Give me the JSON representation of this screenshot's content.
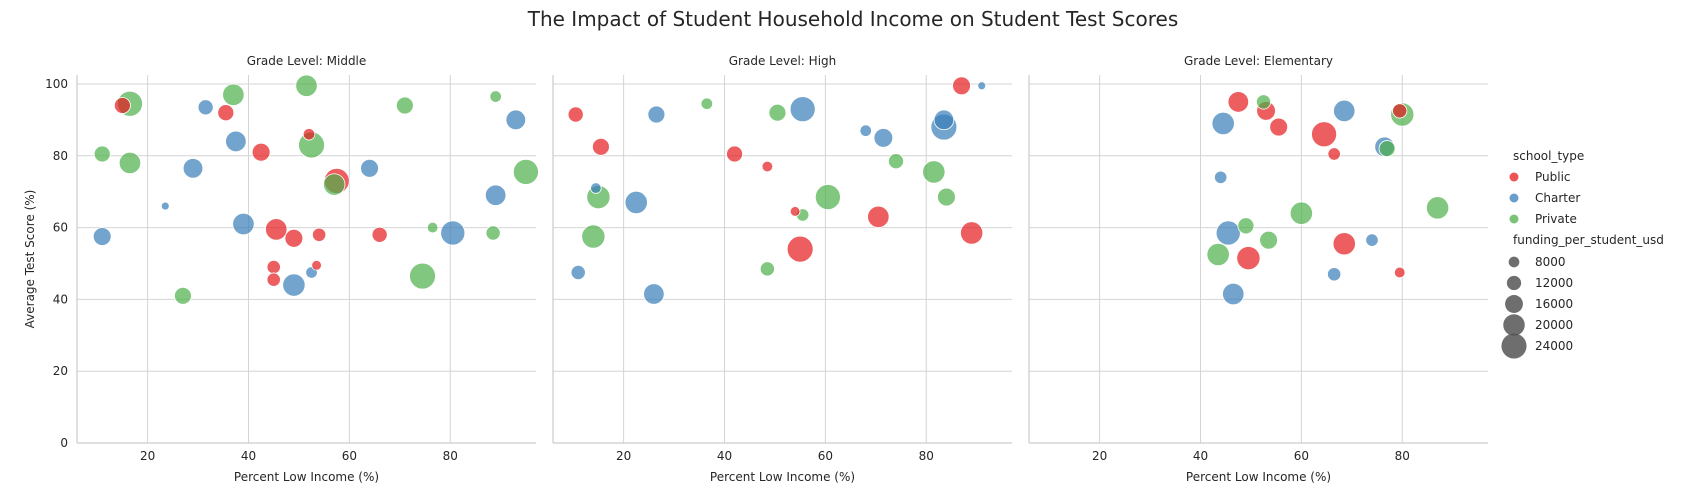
{
  "chart_data": {
    "type": "scatter",
    "title": "The Impact of Student Household Income on Student Test Scores",
    "xlabel": "Percent Low Income (%)",
    "ylabel": "Average Test Score (%)",
    "xlim": [
      6,
      97
    ],
    "ylim": [
      0,
      102.5
    ],
    "xticks": [
      20,
      40,
      60,
      80
    ],
    "yticks": [
      0,
      20,
      40,
      60,
      80,
      100
    ],
    "grid": true,
    "colors": {
      "Public": "#e41a1c",
      "Charter": "#377eb8",
      "Private": "#4daf4a"
    },
    "legend": {
      "placement": "right",
      "hue_title": "school_type",
      "hue_entries": [
        "Public",
        "Charter",
        "Private"
      ],
      "size_title": "funding_per_student_usd",
      "size_entries": [
        8000,
        12000,
        16000,
        20000,
        24000
      ],
      "size_range": [
        5000,
        25000
      ]
    },
    "panels": [
      {
        "title": "Grade Level: Middle",
        "points": [
          {
            "x": 15,
            "y": 94,
            "type": "Public",
            "funding": 14000
          },
          {
            "x": 35.5,
            "y": 92,
            "type": "Public",
            "funding": 14000
          },
          {
            "x": 42.5,
            "y": 81,
            "type": "Public",
            "funding": 16000
          },
          {
            "x": 52,
            "y": 86,
            "type": "Public",
            "funding": 9000
          },
          {
            "x": 57.5,
            "y": 73,
            "type": "Public",
            "funding": 24000
          },
          {
            "x": 45.5,
            "y": 59.5,
            "type": "Public",
            "funding": 20000
          },
          {
            "x": 49,
            "y": 57,
            "type": "Public",
            "funding": 16000
          },
          {
            "x": 54,
            "y": 58,
            "type": "Public",
            "funding": 11000
          },
          {
            "x": 66,
            "y": 58,
            "type": "Public",
            "funding": 13000
          },
          {
            "x": 45,
            "y": 49,
            "type": "Public",
            "funding": 11000
          },
          {
            "x": 45,
            "y": 45.5,
            "type": "Public",
            "funding": 11000
          },
          {
            "x": 53.5,
            "y": 49.5,
            "type": "Public",
            "funding": 7000
          },
          {
            "x": 31.5,
            "y": 93.5,
            "type": "Charter",
            "funding": 13000
          },
          {
            "x": 37.5,
            "y": 84,
            "type": "Charter",
            "funding": 19000
          },
          {
            "x": 29,
            "y": 76.5,
            "type": "Charter",
            "funding": 18000
          },
          {
            "x": 64,
            "y": 76.5,
            "type": "Charter",
            "funding": 16000
          },
          {
            "x": 23.5,
            "y": 66,
            "type": "Charter",
            "funding": 5000
          },
          {
            "x": 39,
            "y": 61,
            "type": "Charter",
            "funding": 20000
          },
          {
            "x": 80.5,
            "y": 58.5,
            "type": "Charter",
            "funding": 23000
          },
          {
            "x": 11,
            "y": 57.5,
            "type": "Charter",
            "funding": 16000
          },
          {
            "x": 89,
            "y": 69,
            "type": "Charter",
            "funding": 19000
          },
          {
            "x": 93,
            "y": 90,
            "type": "Charter",
            "funding": 18000
          },
          {
            "x": 52.5,
            "y": 47.5,
            "type": "Charter",
            "funding": 9000
          },
          {
            "x": 49,
            "y": 44,
            "type": "Charter",
            "funding": 21000
          },
          {
            "x": 16.5,
            "y": 94.5,
            "type": "Private",
            "funding": 24000
          },
          {
            "x": 37,
            "y": 97,
            "type": "Private",
            "funding": 20000
          },
          {
            "x": 51.5,
            "y": 99.5,
            "type": "Private",
            "funding": 20000
          },
          {
            "x": 52.5,
            "y": 83,
            "type": "Private",
            "funding": 25000
          },
          {
            "x": 71,
            "y": 94,
            "type": "Private",
            "funding": 15000
          },
          {
            "x": 89,
            "y": 96.5,
            "type": "Private",
            "funding": 9000
          },
          {
            "x": 11,
            "y": 80.5,
            "type": "Private",
            "funding": 14000
          },
          {
            "x": 16.5,
            "y": 78,
            "type": "Private",
            "funding": 20000
          },
          {
            "x": 57,
            "y": 72,
            "type": "Private",
            "funding": 20000
          },
          {
            "x": 95,
            "y": 75.5,
            "type": "Private",
            "funding": 24000
          },
          {
            "x": 76.5,
            "y": 60,
            "type": "Private",
            "funding": 8000
          },
          {
            "x": 88.5,
            "y": 58.5,
            "type": "Private",
            "funding": 12000
          },
          {
            "x": 74.5,
            "y": 46.5,
            "type": "Private",
            "funding": 25000
          },
          {
            "x": 27,
            "y": 41,
            "type": "Private",
            "funding": 15000
          }
        ]
      },
      {
        "title": "Grade Level: High",
        "points": [
          {
            "x": 10.5,
            "y": 91.5,
            "type": "Public",
            "funding": 13000
          },
          {
            "x": 15.5,
            "y": 82.5,
            "type": "Public",
            "funding": 15000
          },
          {
            "x": 42,
            "y": 80.5,
            "type": "Public",
            "funding": 14000
          },
          {
            "x": 48.5,
            "y": 77,
            "type": "Public",
            "funding": 8000
          },
          {
            "x": 54,
            "y": 64.5,
            "type": "Public",
            "funding": 7000
          },
          {
            "x": 70.5,
            "y": 63,
            "type": "Public",
            "funding": 20000
          },
          {
            "x": 87,
            "y": 99.5,
            "type": "Public",
            "funding": 16000
          },
          {
            "x": 89,
            "y": 58.5,
            "type": "Public",
            "funding": 21000
          },
          {
            "x": 55,
            "y": 54,
            "type": "Public",
            "funding": 25000
          },
          {
            "x": 26.5,
            "y": 91.5,
            "type": "Charter",
            "funding": 15000
          },
          {
            "x": 55.5,
            "y": 93,
            "type": "Charter",
            "funding": 24000
          },
          {
            "x": 68,
            "y": 87,
            "type": "Charter",
            "funding": 9000
          },
          {
            "x": 71.5,
            "y": 85,
            "type": "Charter",
            "funding": 17000
          },
          {
            "x": 83.5,
            "y": 90,
            "type": "Charter",
            "funding": 18000
          },
          {
            "x": 83.5,
            "y": 88,
            "type": "Charter",
            "funding": 25000
          },
          {
            "x": 91,
            "y": 99.5,
            "type": "Charter",
            "funding": 5000
          },
          {
            "x": 14.5,
            "y": 71,
            "type": "Charter",
            "funding": 8000
          },
          {
            "x": 22.5,
            "y": 67,
            "type": "Charter",
            "funding": 21000
          },
          {
            "x": 11,
            "y": 47.5,
            "type": "Charter",
            "funding": 12000
          },
          {
            "x": 26,
            "y": 41.5,
            "type": "Charter",
            "funding": 19000
          },
          {
            "x": 36.5,
            "y": 94.5,
            "type": "Private",
            "funding": 9000
          },
          {
            "x": 50.5,
            "y": 92,
            "type": "Private",
            "funding": 15000
          },
          {
            "x": 74,
            "y": 78.5,
            "type": "Private",
            "funding": 13000
          },
          {
            "x": 81.5,
            "y": 75.5,
            "type": "Private",
            "funding": 21000
          },
          {
            "x": 15,
            "y": 68.5,
            "type": "Private",
            "funding": 22000
          },
          {
            "x": 60.5,
            "y": 68.5,
            "type": "Private",
            "funding": 24000
          },
          {
            "x": 84,
            "y": 68.5,
            "type": "Private",
            "funding": 16000
          },
          {
            "x": 55.5,
            "y": 63.5,
            "type": "Private",
            "funding": 10000
          },
          {
            "x": 14,
            "y": 57.5,
            "type": "Private",
            "funding": 22000
          },
          {
            "x": 48.5,
            "y": 48.5,
            "type": "Private",
            "funding": 12000
          }
        ]
      },
      {
        "title": "Grade Level: Elementary",
        "points": [
          {
            "x": 47.5,
            "y": 95,
            "type": "Public",
            "funding": 19000
          },
          {
            "x": 53,
            "y": 92.5,
            "type": "Public",
            "funding": 17000
          },
          {
            "x": 55.5,
            "y": 88,
            "type": "Public",
            "funding": 16000
          },
          {
            "x": 64.5,
            "y": 86,
            "type": "Public",
            "funding": 24000
          },
          {
            "x": 66.5,
            "y": 80.5,
            "type": "Public",
            "funding": 10000
          },
          {
            "x": 79.5,
            "y": 92.5,
            "type": "Public",
            "funding": 12000
          },
          {
            "x": 68.5,
            "y": 55.5,
            "type": "Public",
            "funding": 21000
          },
          {
            "x": 49.5,
            "y": 51.5,
            "type": "Public",
            "funding": 22000
          },
          {
            "x": 79.5,
            "y": 47.5,
            "type": "Public",
            "funding": 8000
          },
          {
            "x": 44.5,
            "y": 89,
            "type": "Charter",
            "funding": 21000
          },
          {
            "x": 68.5,
            "y": 92.5,
            "type": "Charter",
            "funding": 20000
          },
          {
            "x": 76.5,
            "y": 82.5,
            "type": "Charter",
            "funding": 18000
          },
          {
            "x": 44,
            "y": 74,
            "type": "Charter",
            "funding": 10000
          },
          {
            "x": 45.5,
            "y": 58.5,
            "type": "Charter",
            "funding": 23000
          },
          {
            "x": 74,
            "y": 56.5,
            "type": "Charter",
            "funding": 10000
          },
          {
            "x": 66.5,
            "y": 47,
            "type": "Charter",
            "funding": 11000
          },
          {
            "x": 46.5,
            "y": 41.5,
            "type": "Charter",
            "funding": 20000
          },
          {
            "x": 52.5,
            "y": 95,
            "type": "Private",
            "funding": 12000
          },
          {
            "x": 80,
            "y": 91.5,
            "type": "Private",
            "funding": 22000
          },
          {
            "x": 77,
            "y": 82,
            "type": "Private",
            "funding": 14000
          },
          {
            "x": 60,
            "y": 64,
            "type": "Private",
            "funding": 21000
          },
          {
            "x": 87,
            "y": 65.5,
            "type": "Private",
            "funding": 21000
          },
          {
            "x": 49,
            "y": 60.5,
            "type": "Private",
            "funding": 14000
          },
          {
            "x": 53.5,
            "y": 56.5,
            "type": "Private",
            "funding": 16000
          },
          {
            "x": 43.5,
            "y": 52.5,
            "type": "Private",
            "funding": 21000
          }
        ]
      }
    ]
  }
}
